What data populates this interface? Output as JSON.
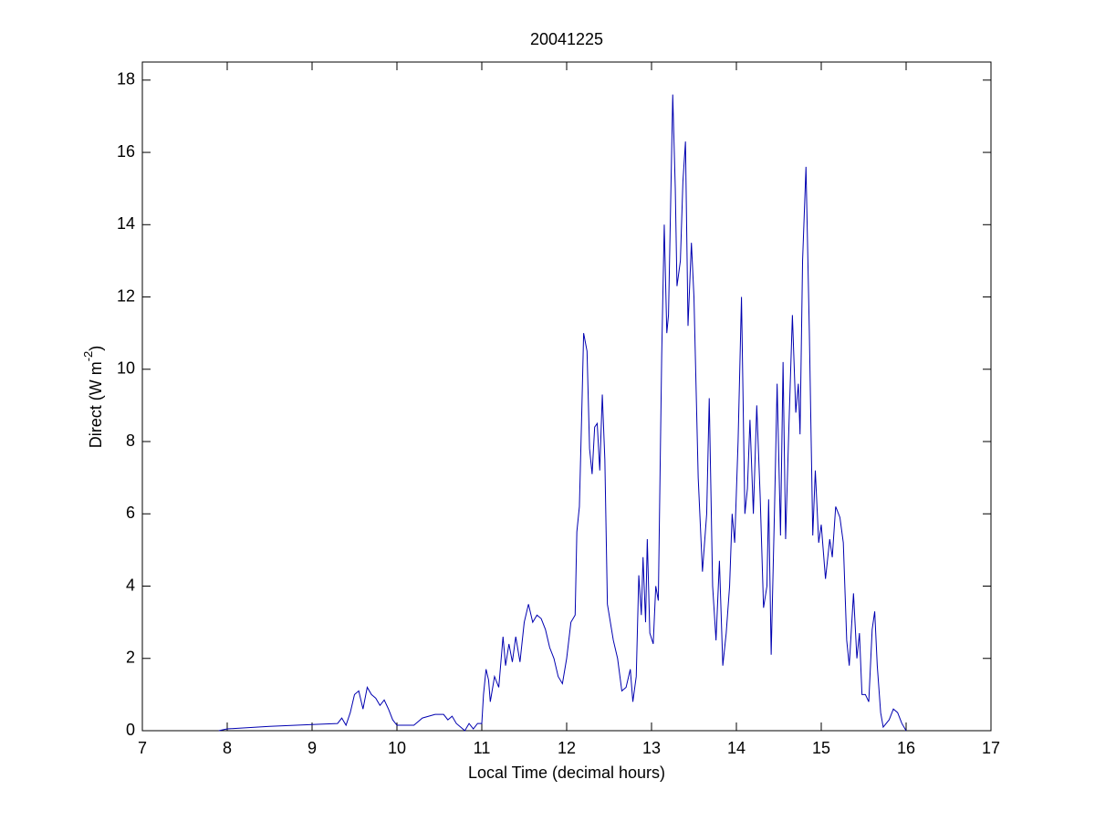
{
  "chart_data": {
    "type": "line",
    "title": "20041225",
    "xlabel": "Local Time (decimal hours)",
    "ylabel": [
      "Direct (W m",
      "-2",
      ")"
    ],
    "xlim": [
      7,
      17
    ],
    "xticks": [
      7,
      8,
      9,
      10,
      11,
      12,
      13,
      14,
      15,
      16,
      17
    ],
    "ylim": [
      0,
      18.5
    ],
    "yticks": [
      0,
      2,
      4,
      6,
      8,
      10,
      12,
      14,
      16,
      18
    ],
    "grid": false,
    "series": [
      {
        "color": "#0000b0",
        "x": [
          7.9,
          8.0,
          8.5,
          9.0,
          9.3,
          9.35,
          9.4,
          9.45,
          9.5,
          9.55,
          9.6,
          9.65,
          9.7,
          9.75,
          9.8,
          9.85,
          9.9,
          9.95,
          10.0,
          10.2,
          10.3,
          10.45,
          10.55,
          10.6,
          10.65,
          10.7,
          10.75,
          10.8,
          10.85,
          10.9,
          10.95,
          11.0,
          11.02,
          11.05,
          11.08,
          11.1,
          11.15,
          11.2,
          11.25,
          11.28,
          11.32,
          11.36,
          11.4,
          11.45,
          11.5,
          11.55,
          11.6,
          11.65,
          11.7,
          11.75,
          11.8,
          11.85,
          11.9,
          11.95,
          12.0,
          12.05,
          12.1,
          12.12,
          12.15,
          12.18,
          12.2,
          12.24,
          12.27,
          12.3,
          12.33,
          12.36,
          12.39,
          12.42,
          12.45,
          12.48,
          12.55,
          12.6,
          12.65,
          12.7,
          12.75,
          12.78,
          12.82,
          12.85,
          12.88,
          12.9,
          12.93,
          12.95,
          12.98,
          13.02,
          13.05,
          13.08,
          13.12,
          13.15,
          13.18,
          13.2,
          13.25,
          13.28,
          13.3,
          13.34,
          13.37,
          13.4,
          13.43,
          13.47,
          13.5,
          13.55,
          13.6,
          13.65,
          13.68,
          13.72,
          13.76,
          13.8,
          13.84,
          13.88,
          13.92,
          13.95,
          13.98,
          14.02,
          14.06,
          14.1,
          14.13,
          14.16,
          14.2,
          14.24,
          14.28,
          14.32,
          14.36,
          14.38,
          14.41,
          14.45,
          14.48,
          14.52,
          14.55,
          14.58,
          14.62,
          14.66,
          14.7,
          14.73,
          14.75,
          14.78,
          14.82,
          14.86,
          14.9,
          14.93,
          14.97,
          15.0,
          15.05,
          15.1,
          15.13,
          15.17,
          15.22,
          15.26,
          15.3,
          15.33,
          15.38,
          15.42,
          15.45,
          15.48,
          15.52,
          15.56,
          15.6,
          15.63,
          15.66,
          15.7,
          15.73,
          15.8,
          15.85,
          15.9,
          15.95,
          16.0
        ],
        "values": [
          0.0,
          0.05,
          0.12,
          0.17,
          0.2,
          0.35,
          0.15,
          0.5,
          1.0,
          1.1,
          0.6,
          1.2,
          1.0,
          0.9,
          0.7,
          0.85,
          0.6,
          0.3,
          0.15,
          0.15,
          0.35,
          0.45,
          0.45,
          0.3,
          0.4,
          0.2,
          0.1,
          0.0,
          0.2,
          0.05,
          0.2,
          0.2,
          1.0,
          1.7,
          1.4,
          0.8,
          1.5,
          1.2,
          2.6,
          1.8,
          2.4,
          1.9,
          2.6,
          1.9,
          3.0,
          3.5,
          3.0,
          3.2,
          3.1,
          2.8,
          2.3,
          2.0,
          1.5,
          1.3,
          2.0,
          3.0,
          3.2,
          5.5,
          6.2,
          9.0,
          11.0,
          10.5,
          7.8,
          7.1,
          8.4,
          8.5,
          7.2,
          9.3,
          7.5,
          3.5,
          2.5,
          2.0,
          1.1,
          1.2,
          1.7,
          0.8,
          1.5,
          4.3,
          3.2,
          4.8,
          3.0,
          5.3,
          2.7,
          2.4,
          4.0,
          3.6,
          10.4,
          14.0,
          11.0,
          11.5,
          17.6,
          15.0,
          12.3,
          13.0,
          15.2,
          16.3,
          11.2,
          13.5,
          12.0,
          7.0,
          4.4,
          6.0,
          9.2,
          4.0,
          2.5,
          4.7,
          1.8,
          2.7,
          4.0,
          6.0,
          5.2,
          8.0,
          12.0,
          6.0,
          6.7,
          8.6,
          6.0,
          9.0,
          6.5,
          3.4,
          4.0,
          6.4,
          2.1,
          6.2,
          9.6,
          5.4,
          10.2,
          5.3,
          8.5,
          11.5,
          8.8,
          9.6,
          8.2,
          13.0,
          15.6,
          11.0,
          5.4,
          7.2,
          5.2,
          5.7,
          4.2,
          5.3,
          4.8,
          6.2,
          5.9,
          5.2,
          2.5,
          1.8,
          3.8,
          2.0,
          2.7,
          1.0,
          1.0,
          0.8,
          2.8,
          3.3,
          1.8,
          0.5,
          0.1,
          0.3,
          0.6,
          0.5,
          0.2,
          0.0
        ]
      }
    ]
  }
}
